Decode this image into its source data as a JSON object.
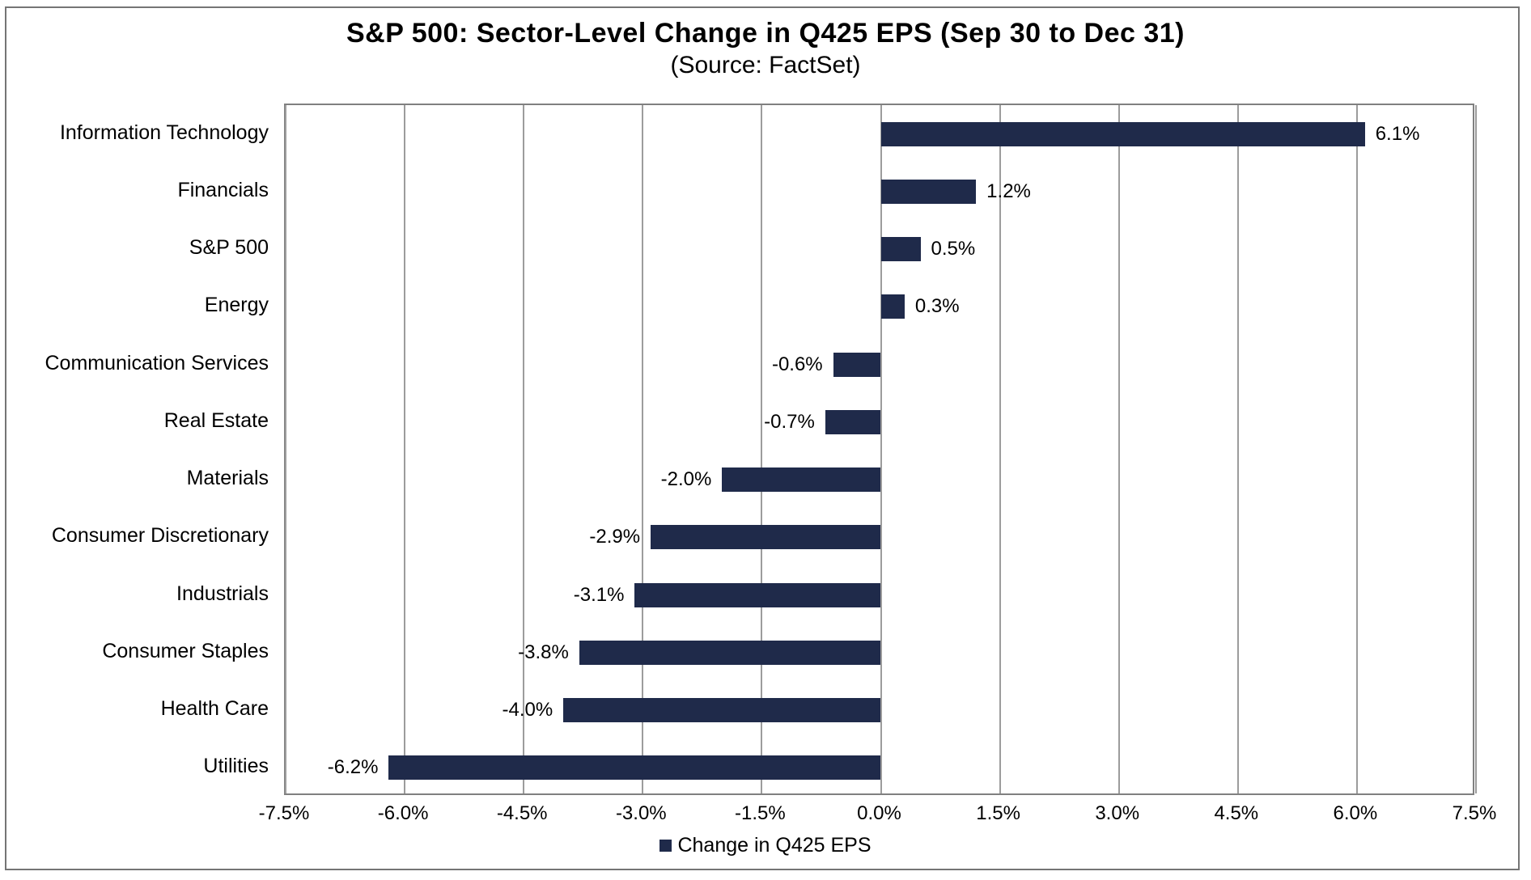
{
  "chart_data": {
    "type": "bar",
    "orientation": "horizontal",
    "title": "S&P 500: Sector-Level Change in Q425 EPS (Sep 30 to Dec 31)",
    "subtitle": "(Source: FactSet)",
    "categories": [
      "Information Technology",
      "Financials",
      "S&P 500",
      "Energy",
      "Communication Services",
      "Real Estate",
      "Materials",
      "Consumer Discretionary",
      "Industrials",
      "Consumer Staples",
      "Health Care",
      "Utilities"
    ],
    "values": [
      6.1,
      1.2,
      0.5,
      0.3,
      -0.6,
      -0.7,
      -2.0,
      -2.9,
      -3.1,
      -3.8,
      -4.0,
      -6.2
    ],
    "value_labels": [
      "6.1%",
      "1.2%",
      "0.5%",
      "0.3%",
      "-0.6%",
      "-0.7%",
      "-2.0%",
      "-2.9%",
      "-3.1%",
      "-3.8%",
      "-4.0%",
      "-6.2%"
    ],
    "xlabel": "",
    "ylabel": "",
    "xlim": [
      -7.5,
      7.5
    ],
    "xtick_values": [
      -7.5,
      -6.0,
      -4.5,
      -3.0,
      -1.5,
      0.0,
      1.5,
      3.0,
      4.5,
      6.0,
      7.5
    ],
    "xtick_labels": [
      "-7.5%",
      "-6.0%",
      "-4.5%",
      "-3.0%",
      "-1.5%",
      "0.0%",
      "1.5%",
      "3.0%",
      "4.5%",
      "6.0%",
      "7.5%"
    ],
    "grid": "vertical",
    "legend_position": "bottom-center",
    "legend": [
      "Change in Q425 EPS"
    ]
  },
  "colors": {
    "bar": "#1F2A4A",
    "gridline": "#9C9C9C",
    "plot_border": "#808080",
    "chart_border": "#757575",
    "text": "#000000"
  }
}
